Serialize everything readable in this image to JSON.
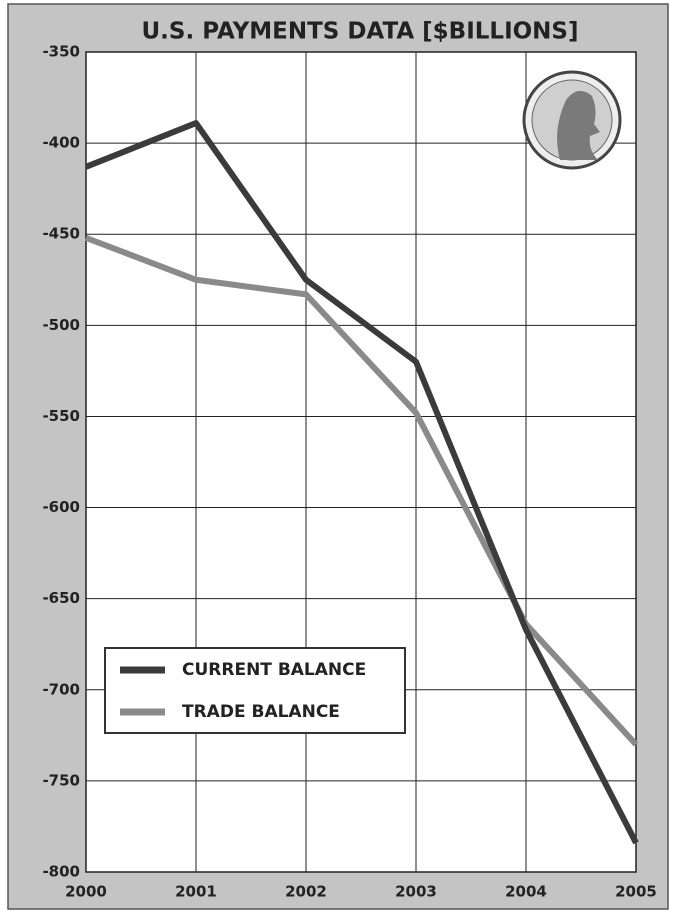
{
  "chart_data": {
    "type": "line",
    "title": "U.S. PAYMENTS DATA [$BILLIONS]",
    "x": [
      2000,
      2001,
      2002,
      2003,
      2004,
      2005
    ],
    "xlim": [
      2000,
      2005
    ],
    "xticks": [
      2000,
      2001,
      2002,
      2003,
      2004,
      2005
    ],
    "ylim": [
      -800,
      -350
    ],
    "yticks": [
      -350,
      -400,
      -450,
      -500,
      -550,
      -600,
      -650,
      -700,
      -750,
      -800
    ],
    "grid": true,
    "legend": "lower left",
    "series": [
      {
        "name": "CURRENT BALANCE",
        "color": "#3b3b3b",
        "values": [
          -413,
          -389,
          -475,
          -520,
          -667,
          -784
        ]
      },
      {
        "name": "TRADE BALANCE",
        "color": "#8a8a8a",
        "values": [
          -452,
          -475,
          -483,
          -548,
          -664,
          -730
        ]
      }
    ]
  }
}
